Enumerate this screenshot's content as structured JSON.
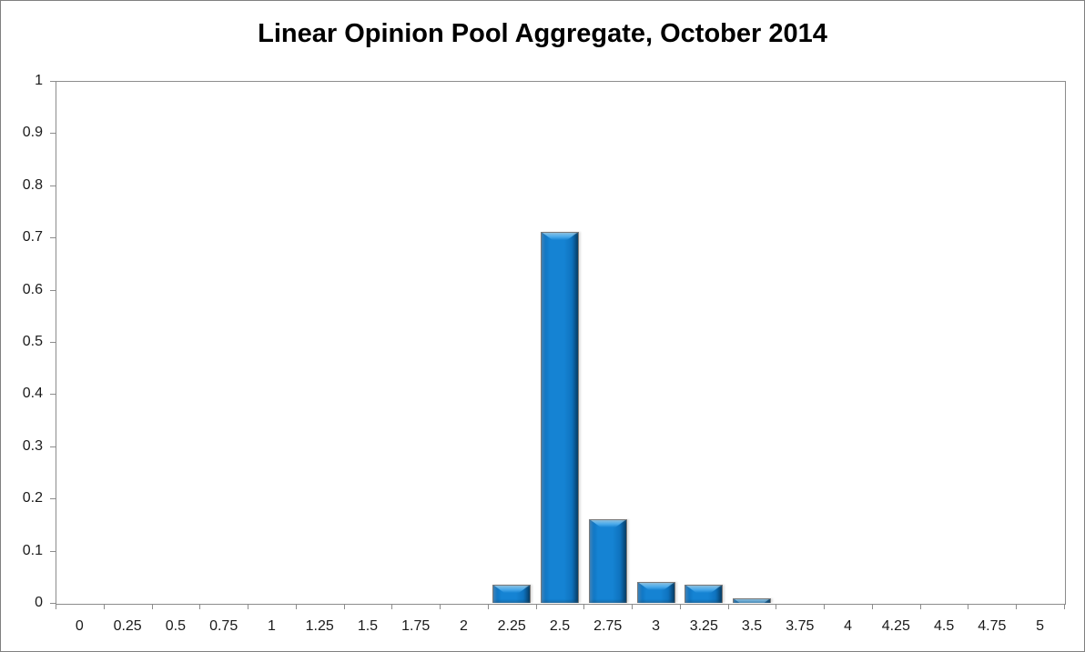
{
  "chart_data": {
    "type": "bar",
    "title": "Linear Opinion Pool Aggregate, October 2014",
    "xlabel": "",
    "ylabel": "",
    "categories": [
      "0",
      "0.25",
      "0.5",
      "0.75",
      "1",
      "1.25",
      "1.5",
      "1.75",
      "2",
      "2.25",
      "2.5",
      "2.75",
      "3",
      "3.25",
      "3.5",
      "3.75",
      "4",
      "4.25",
      "4.5",
      "4.75",
      "5"
    ],
    "values": [
      0,
      0,
      0,
      0,
      0,
      0,
      0,
      0,
      0,
      0.035,
      0.71,
      0.16,
      0.04,
      0.035,
      0.008,
      0,
      0,
      0,
      0,
      0,
      0
    ],
    "ylim": [
      0,
      1
    ],
    "y_tick_labels": [
      "0",
      "0.1",
      "0.2",
      "0.3",
      "0.4",
      "0.5",
      "0.6",
      "0.7",
      "0.8",
      "0.9",
      "1"
    ],
    "grid": "off",
    "legend": "none",
    "colors": {
      "bar_fill": "#1583D3",
      "bar_highlight": "#8ED0F8",
      "bar_edge_dark": "#0A568F",
      "bar_outline": "#7A7A7A",
      "plot_border": "#8C8C8C",
      "outer_border": "#808080",
      "text": "#1A1A1A",
      "background": "#FFFFFF"
    }
  }
}
